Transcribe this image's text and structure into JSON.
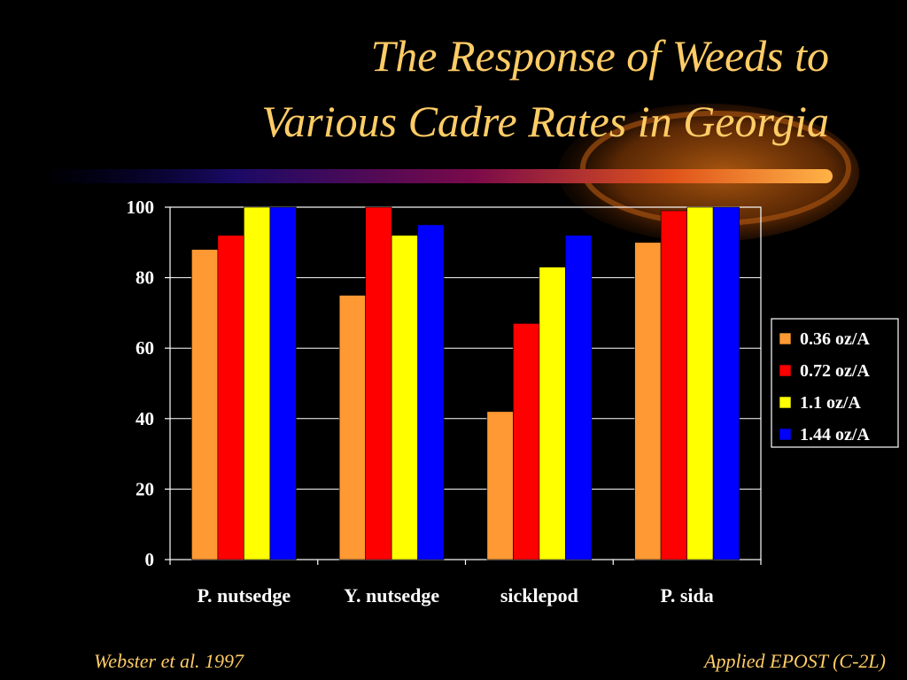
{
  "title": {
    "line1": "The Response of Weeds to",
    "line2": "Various Cadre Rates in Georgia"
  },
  "footer": {
    "left": "Webster et al. 1997",
    "right": "Applied EPOST (C-2L)"
  },
  "colors": {
    "background": "#000000",
    "title": "#ffcc66",
    "axis": "#ffffff",
    "text": "#ffffff"
  },
  "chart_data": {
    "type": "bar",
    "categories": [
      "P. nutsedge",
      "Y. nutsedge",
      "sicklepod",
      "P. sida"
    ],
    "series": [
      {
        "name": "0.36 oz/A",
        "color": "#ff9933",
        "values": [
          88,
          75,
          42,
          90
        ]
      },
      {
        "name": "0.72 oz/A",
        "color": "#ff0000",
        "values": [
          92,
          100,
          67,
          99
        ]
      },
      {
        "name": "1.1 oz/A",
        "color": "#ffff00",
        "values": [
          100,
          92,
          83,
          100
        ]
      },
      {
        "name": "1.44 oz/A",
        "color": "#0000ff",
        "values": [
          100,
          95,
          92,
          100
        ]
      }
    ],
    "ylim": [
      0,
      100
    ],
    "yticks": [
      0,
      20,
      40,
      60,
      80,
      100
    ],
    "grid": true,
    "legend_position": "right"
  }
}
